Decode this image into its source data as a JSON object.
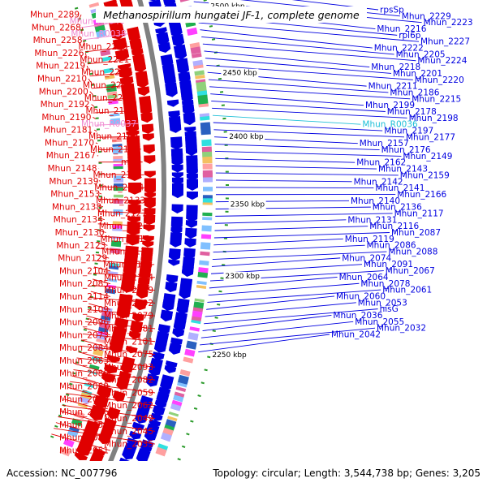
{
  "title": "Methanospirillum hungatei JF-1, complete genome",
  "footer": {
    "accession": "Accession: NC_007796",
    "topology": "Topology: circular; Length: 3,544,738 bp; Genes: 3,205"
  },
  "colors": {
    "plus_strand": "#e00000",
    "minus_strand": "#0000e0",
    "rna_pink": "#f08ad0",
    "rna_cyan": "#20c0d8",
    "backbone": "#808080",
    "tick": "#2a9a2a"
  },
  "scale_labels": [
    "2500 kbp",
    "2450 kbp",
    "2400 kbp",
    "2350 kbp",
    "2300 kbp",
    "2250 kbp"
  ],
  "left_labels": [
    {
      "text": "Mhun_2289",
      "kind": "plus"
    },
    {
      "text": "Mhun_R0040",
      "kind": "rna"
    },
    {
      "text": "Mhun_2268",
      "kind": "plus"
    },
    {
      "text": "Mhun_R0038",
      "kind": "rna"
    },
    {
      "text": "Mhun_2258",
      "kind": "plus"
    },
    {
      "text": "Mhun_2255",
      "kind": "plus"
    },
    {
      "text": "Mhun_2226",
      "kind": "plus"
    },
    {
      "text": "Mhun_2221",
      "kind": "plus"
    },
    {
      "text": "Mhun_2219",
      "kind": "plus"
    },
    {
      "text": "Mhun_2214",
      "kind": "plus"
    },
    {
      "text": "Mhun_2210",
      "kind": "plus"
    },
    {
      "text": "Mhun_2209",
      "kind": "plus"
    },
    {
      "text": "Mhun_2200",
      "kind": "plus"
    },
    {
      "text": "Mhun_2203",
      "kind": "plus"
    },
    {
      "text": "Mhun_2192",
      "kind": "plus"
    },
    {
      "text": "Mhun_2184",
      "kind": "plus"
    },
    {
      "text": "Mhun_2190",
      "kind": "plus"
    },
    {
      "text": "Mhun_R0037",
      "kind": "rna"
    },
    {
      "text": "Mhun_2181",
      "kind": "plus"
    },
    {
      "text": "Mhun_2169",
      "kind": "plus"
    },
    {
      "text": "Mhun_2170",
      "kind": "plus"
    },
    {
      "text": "Mhun_2156",
      "kind": "plus"
    },
    {
      "text": "Mhun_2167",
      "kind": "plus"
    },
    {
      "text": "mtrF",
      "kind": "plus"
    },
    {
      "text": "Mhun_2148",
      "kind": "plus"
    },
    {
      "text": "Mhun_2151",
      "kind": "plus"
    },
    {
      "text": "Mhun_2139",
      "kind": "plus"
    },
    {
      "text": "Mhun_2144",
      "kind": "plus"
    },
    {
      "text": "Mhun_2153",
      "kind": "plus"
    },
    {
      "text": "Mhun_2133",
      "kind": "plus"
    },
    {
      "text": "Mhun_2138",
      "kind": "plus"
    },
    {
      "text": "Mhun_2127",
      "kind": "plus"
    },
    {
      "text": "Mhun_2134",
      "kind": "plus"
    },
    {
      "text": "Mhun_2122",
      "kind": "plus"
    },
    {
      "text": "Mhun_2130",
      "kind": "plus"
    },
    {
      "text": "Mhun_2115",
      "kind": "plus"
    },
    {
      "text": "Mhun_2123",
      "kind": "plus"
    },
    {
      "text": "Mhun_2112",
      "kind": "plus"
    },
    {
      "text": "Mhun_2129",
      "kind": "plus"
    },
    {
      "text": "Mhun_2118",
      "kind": "plus"
    },
    {
      "text": "Mhun_2104",
      "kind": "plus"
    },
    {
      "text": "Mhun_2124",
      "kind": "plus"
    },
    {
      "text": "Mhun_2085",
      "kind": "plus"
    },
    {
      "text": "Mhun_2099",
      "kind": "plus"
    },
    {
      "text": "Mhun_2114",
      "kind": "plus"
    },
    {
      "text": "Mhun_2092",
      "kind": "plus"
    },
    {
      "text": "Mhun_2109",
      "kind": "plus"
    },
    {
      "text": "Mhun_2079",
      "kind": "plus"
    },
    {
      "text": "Mhun_2096",
      "kind": "plus"
    },
    {
      "text": "Mhun_2081",
      "kind": "plus"
    },
    {
      "text": "Mhun_2073",
      "kind": "plus"
    },
    {
      "text": "Mhun_2101",
      "kind": "plus"
    },
    {
      "text": "Mhun_2084",
      "kind": "plus"
    },
    {
      "text": "Mhun_2075",
      "kind": "plus"
    },
    {
      "text": "Mhun_2063",
      "kind": "plus"
    },
    {
      "text": "Mhun_2093",
      "kind": "plus"
    },
    {
      "text": "Mhun_2080",
      "kind": "plus"
    },
    {
      "text": "Mhun_2082",
      "kind": "plus"
    },
    {
      "text": "Mhun_2069",
      "kind": "plus"
    },
    {
      "text": "Mhun_2059",
      "kind": "plus"
    },
    {
      "text": "Mhun_2083",
      "kind": "plus"
    },
    {
      "text": "Mhun_2062",
      "kind": "plus"
    },
    {
      "text": "Mhun_2056",
      "kind": "plus"
    },
    {
      "text": "Mhun_2049",
      "kind": "plus"
    },
    {
      "text": "Mhun_2058",
      "kind": "plus"
    },
    {
      "text": "Mhun_2045",
      "kind": "plus"
    },
    {
      "text": "Mhun_2052",
      "kind": "plus"
    },
    {
      "text": "Mhun_2035",
      "kind": "plus"
    },
    {
      "text": "Mhun_2051",
      "kind": "plus"
    }
  ],
  "right_labels": [
    {
      "text": "rpsSp",
      "kind": "minus"
    },
    {
      "text": "Mhun_2229",
      "kind": "minus"
    },
    {
      "text": "Mhun_2223",
      "kind": "minus"
    },
    {
      "text": "Mhun_2216",
      "kind": "minus"
    },
    {
      "text": "rpl6p",
      "kind": "minus"
    },
    {
      "text": "Mhun_2227",
      "kind": "minus"
    },
    {
      "text": "Mhun_2222",
      "kind": "minus"
    },
    {
      "text": "Mhun_2205",
      "kind": "minus"
    },
    {
      "text": "Mhun_2224",
      "kind": "minus"
    },
    {
      "text": "Mhun_2218",
      "kind": "minus"
    },
    {
      "text": "Mhun_2201",
      "kind": "minus"
    },
    {
      "text": "Mhun_2220",
      "kind": "minus"
    },
    {
      "text": "Mhun_2211",
      "kind": "minus"
    },
    {
      "text": "Mhun_2186",
      "kind": "minus"
    },
    {
      "text": "Mhun_2215",
      "kind": "minus"
    },
    {
      "text": "Mhun_2199",
      "kind": "minus"
    },
    {
      "text": "Mhun_2178",
      "kind": "minus"
    },
    {
      "text": "Mhun_2198",
      "kind": "minus"
    },
    {
      "text": "Mhun_R0036",
      "kind": "rna2"
    },
    {
      "text": "Mhun_2197",
      "kind": "minus"
    },
    {
      "text": "Mhun_2177",
      "kind": "minus"
    },
    {
      "text": "Mhun_2157",
      "kind": "minus"
    },
    {
      "text": "Mhun_2176",
      "kind": "minus"
    },
    {
      "text": "Mhun_2149",
      "kind": "minus"
    },
    {
      "text": "Mhun_2162",
      "kind": "minus"
    },
    {
      "text": "Mhun_2143",
      "kind": "minus"
    },
    {
      "text": "Mhun_2159",
      "kind": "minus"
    },
    {
      "text": "Mhun_2142",
      "kind": "minus"
    },
    {
      "text": "Mhun_2141",
      "kind": "minus"
    },
    {
      "text": "Mhun_2166",
      "kind": "minus"
    },
    {
      "text": "Mhun_2140",
      "kind": "minus"
    },
    {
      "text": "Mhun_2136",
      "kind": "minus"
    },
    {
      "text": "Mhun_2117",
      "kind": "minus"
    },
    {
      "text": "Mhun_2131",
      "kind": "minus"
    },
    {
      "text": "Mhun_2116",
      "kind": "minus"
    },
    {
      "text": "Mhun_2087",
      "kind": "minus"
    },
    {
      "text": "Mhun_2119",
      "kind": "minus"
    },
    {
      "text": "Mhun_2086",
      "kind": "minus"
    },
    {
      "text": "Mhun_2088",
      "kind": "minus"
    },
    {
      "text": "Mhun_2074",
      "kind": "minus"
    },
    {
      "text": "Mhun_2091",
      "kind": "minus"
    },
    {
      "text": "Mhun_2067",
      "kind": "minus"
    },
    {
      "text": "Mhun_2064",
      "kind": "minus"
    },
    {
      "text": "Mhun_2078",
      "kind": "minus"
    },
    {
      "text": "Mhun_2061",
      "kind": "minus"
    },
    {
      "text": "Mhun_2060",
      "kind": "minus"
    },
    {
      "text": "Mhun_2053",
      "kind": "minus"
    },
    {
      "text": "hisG",
      "kind": "minus"
    },
    {
      "text": "Mhun_2036",
      "kind": "minus"
    },
    {
      "text": "Mhun_2055",
      "kind": "minus"
    },
    {
      "text": "Mhun_2032",
      "kind": "minus"
    },
    {
      "text": "Mhun_2042",
      "kind": "minus"
    }
  ]
}
